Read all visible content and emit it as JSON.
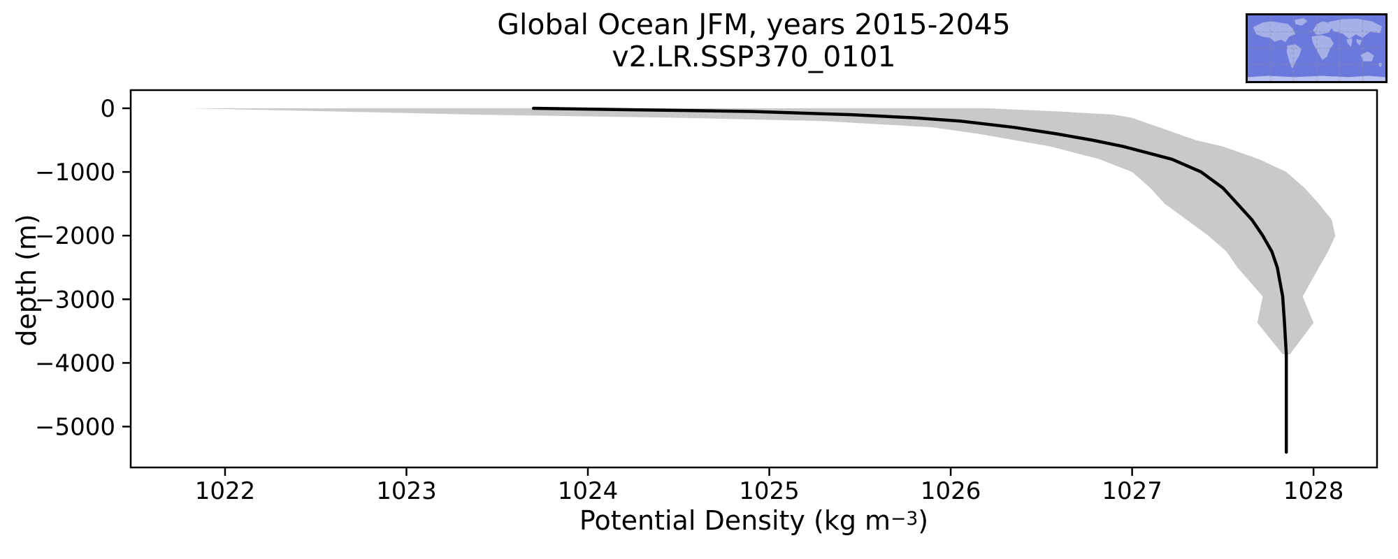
{
  "title": {
    "line1": "Global Ocean JFM, years 2015-2045",
    "line2": "v2.LR.SSP370_0101"
  },
  "axes": {
    "ylabel": "depth (m)",
    "xlabel_prefix": "Potential Density (kg m",
    "xlabel_sup": "−3",
    "xlabel_suffix": ")"
  },
  "chart_data": {
    "type": "line",
    "title": "Global Ocean JFM, years 2015-2045",
    "subtitle": "v2.LR.SSP370_0101",
    "xlabel": "Potential Density (kg m^-3)",
    "ylabel": "depth (m)",
    "xlim": [
      1021.48,
      1028.35
    ],
    "ylim": [
      -5642,
      285
    ],
    "x_ticks": [
      1022,
      1023,
      1024,
      1025,
      1026,
      1027,
      1028
    ],
    "y_ticks": [
      0,
      -1000,
      -2000,
      -3000,
      -4000,
      -5000
    ],
    "grid": false,
    "legend": "none",
    "line_color": "#000000",
    "band_color": "#c9c9c9",
    "series": [
      {
        "name": "mean potential density profile",
        "depth_m": [
          0,
          -50,
          -100,
          -150,
          -200,
          -300,
          -400,
          -500,
          -600,
          -800,
          -1000,
          -1250,
          -1500,
          -1750,
          -2000,
          -2250,
          -2500,
          -2955,
          -3370,
          -3864,
          -4500,
          -5400
        ],
        "density": [
          1023.7,
          1024.9,
          1025.45,
          1025.8,
          1026.05,
          1026.35,
          1026.58,
          1026.78,
          1026.95,
          1027.22,
          1027.38,
          1027.5,
          1027.58,
          1027.66,
          1027.72,
          1027.77,
          1027.8,
          1027.83,
          1027.84,
          1027.85,
          1027.85,
          1027.85
        ]
      },
      {
        "name": "uncertainty band lower bound",
        "depth_m": [
          0,
          -50,
          -100,
          -150,
          -200,
          -300,
          -400,
          -500,
          -600,
          -800,
          -1000,
          -1250,
          -1500,
          -1750,
          -2000,
          -2250,
          -2500,
          -2955,
          -3370,
          -3864
        ],
        "density": [
          1021.8,
          1022.6,
          1023.4,
          1024.5,
          1025.3,
          1025.9,
          1026.15,
          1026.35,
          1026.55,
          1026.82,
          1027.0,
          1027.1,
          1027.18,
          1027.3,
          1027.42,
          1027.52,
          1027.58,
          1027.72,
          1027.69,
          1027.83
        ]
      },
      {
        "name": "uncertainty band upper bound",
        "depth_m": [
          0,
          -50,
          -100,
          -150,
          -200,
          -300,
          -400,
          -500,
          -600,
          -800,
          -1000,
          -1250,
          -1500,
          -1750,
          -2000,
          -2250,
          -2500,
          -2955,
          -3370,
          -3864
        ],
        "density": [
          1026.2,
          1026.6,
          1026.9,
          1027.0,
          1027.05,
          1027.15,
          1027.25,
          1027.35,
          1027.5,
          1027.7,
          1027.85,
          1027.95,
          1028.03,
          1028.1,
          1028.12,
          1028.08,
          1028.03,
          1027.94,
          1028.0,
          1027.87
        ]
      }
    ],
    "inset_map": {
      "ocean_color": "#6b79dd",
      "land_color": "#a6b0e8",
      "antarctica_color": "#b9c2ee",
      "grid_color": "#8a8f99"
    }
  },
  "layout_colors": {
    "frame": "#000000",
    "background": "#ffffff"
  }
}
